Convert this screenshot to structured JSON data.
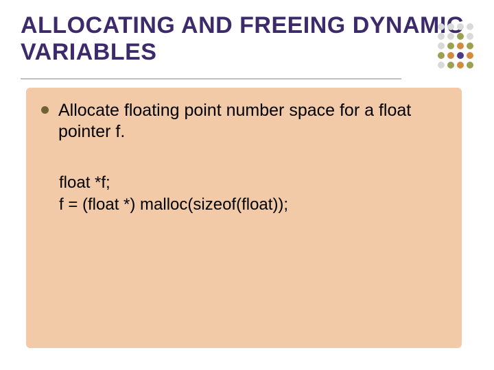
{
  "slide": {
    "title": "ALLOCATING AND FREEING DYNAMIC VARIABLES",
    "title_color": "#3c2a6b",
    "underline_color": "#bfbfbf",
    "background": "#ffffff"
  },
  "dot_grid": {
    "rows": 5,
    "cols": 4,
    "cell": 14,
    "radius": 5,
    "colors": {
      "faint": "#d9d9d9",
      "olive": "#9ca152",
      "orange": "#d38c3f",
      "purple": "#4b3a84"
    },
    "layout": [
      [
        "faint",
        "faint",
        "faint",
        "faint"
      ],
      [
        "faint",
        "faint",
        "olive",
        "faint"
      ],
      [
        "faint",
        "olive",
        "orange",
        "olive"
      ],
      [
        "olive",
        "orange",
        "purple",
        "orange"
      ],
      [
        "faint",
        "olive",
        "orange",
        "olive"
      ]
    ]
  },
  "content_box": {
    "background": "#f2caa7",
    "bullet_color": "#716232",
    "bullet_text": "Allocate floating point number space for a float pointer f.",
    "code_line1": "float *f;",
    "code_line2": "f = (float *) malloc(sizeof(float));"
  }
}
